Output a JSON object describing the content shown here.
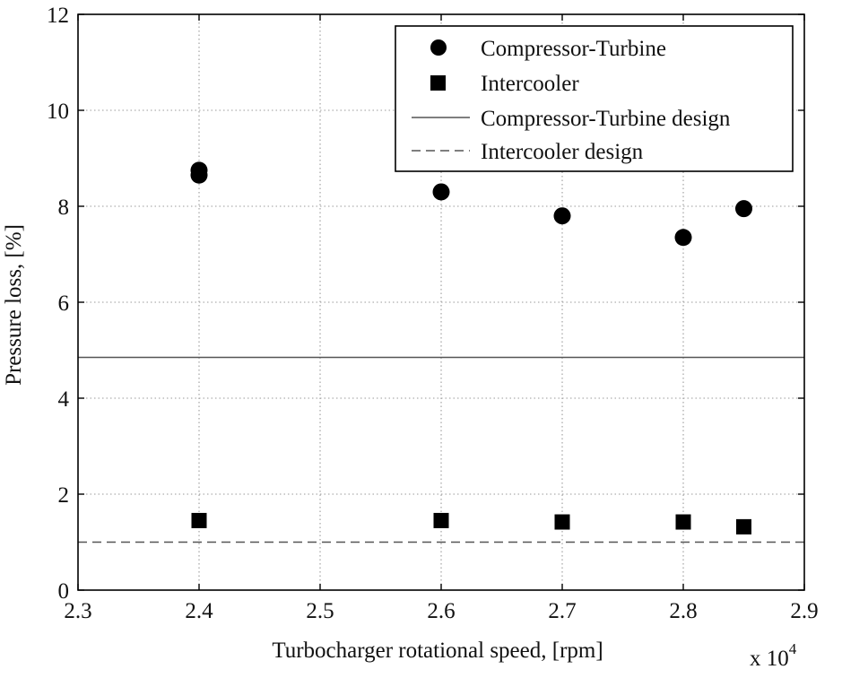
{
  "chart_data": {
    "type": "scatter",
    "title": "",
    "xlabel": "Turbocharger rotational speed, [rpm]",
    "ylabel": "Pressure loss, [%]",
    "x_multiplier_label": "x 10",
    "x_multiplier_exponent": "4",
    "xlim": [
      2.3,
      2.9
    ],
    "ylim": [
      0,
      12
    ],
    "xticks": [
      "2.3",
      "2.4",
      "2.5",
      "2.6",
      "2.7",
      "2.8",
      "2.9"
    ],
    "xtick_values": [
      2.3,
      2.4,
      2.5,
      2.6,
      2.7,
      2.8,
      2.9
    ],
    "yticks": [
      "0",
      "2",
      "4",
      "6",
      "8",
      "10",
      "12"
    ],
    "ytick_values": [
      0,
      2,
      4,
      6,
      8,
      10,
      12
    ],
    "grid": true,
    "legend_position": "top-right",
    "series": [
      {
        "name": "Compressor-Turbine",
        "marker": "circle",
        "x": [
          2.4,
          2.4,
          2.6,
          2.7,
          2.8,
          2.85
        ],
        "y": [
          8.75,
          8.65,
          8.3,
          7.8,
          7.35,
          7.95
        ]
      },
      {
        "name": "Intercooler",
        "marker": "square",
        "x": [
          2.4,
          2.6,
          2.7,
          2.8,
          2.85
        ],
        "y": [
          1.45,
          1.45,
          1.42,
          1.42,
          1.32
        ]
      }
    ],
    "reference_lines": [
      {
        "name": "Compressor-Turbine design",
        "style": "solid",
        "y": 4.85
      },
      {
        "name": "Intercooler design",
        "style": "dashed",
        "y": 1.0
      }
    ],
    "colors": {
      "markers": "#000000",
      "axes": "#000000",
      "grid": "#9a9a9a",
      "design_lines": "#555555"
    }
  }
}
